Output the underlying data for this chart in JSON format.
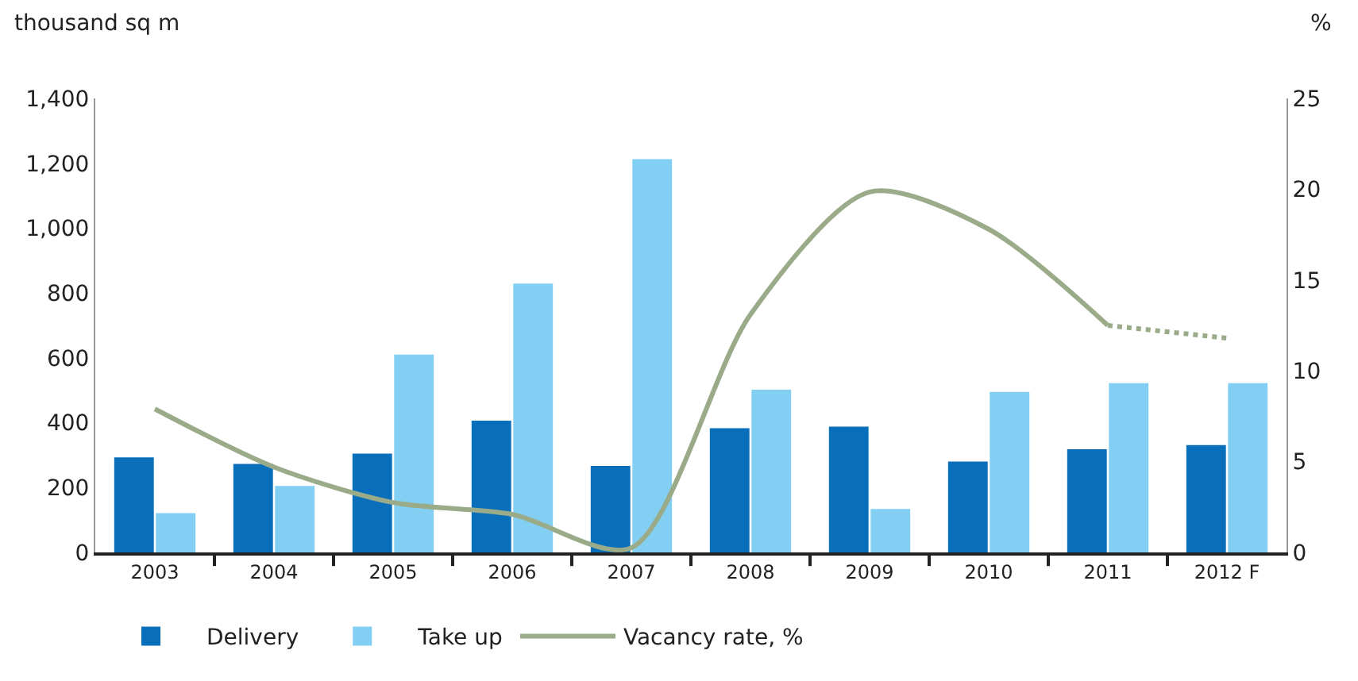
{
  "chart_data": {
    "type": "bar",
    "ylabel": "thousand sq m",
    "y2label": "%",
    "categories": [
      "2003",
      "2004",
      "2005",
      "2006",
      "2007",
      "2008",
      "2009",
      "2010",
      "2011",
      "2012 F"
    ],
    "series": [
      {
        "name": "Delivery",
        "color": "#0a6fba",
        "values": [
          293,
          273,
          305,
          406,
          267,
          383,
          388,
          280,
          318,
          331
        ]
      },
      {
        "name": "Take up",
        "color": "#82cff3",
        "values": [
          121,
          205,
          610,
          829,
          1213,
          502,
          134,
          495,
          522,
          522
        ]
      },
      {
        "name": "Vacancy rate, %",
        "type": "line",
        "axis": "y2",
        "color": "#9aab8a",
        "line_style": "solid",
        "values": [
          7.9,
          4.7,
          2.75,
          2.1,
          0.25,
          13.1,
          19.85,
          17.8,
          12.5,
          null
        ]
      },
      {
        "type": "line",
        "axis": "y2",
        "color": "#9aab8a",
        "line_style": "dotted",
        "values": [
          null,
          null,
          null,
          null,
          null,
          null,
          null,
          null,
          12.5,
          11.8
        ]
      }
    ],
    "ylim": [
      0,
      1400
    ],
    "yticks": [
      0,
      200,
      400,
      600,
      800,
      {
        "value": 1000,
        "label": "1,000"
      },
      {
        "value": 1200,
        "label": "1,200"
      },
      {
        "value": 1400,
        "label": "1,400"
      }
    ],
    "y2lim": [
      0,
      25
    ],
    "y2ticks": [
      0,
      5,
      10,
      15,
      20,
      25
    ],
    "legend": "bottom"
  }
}
